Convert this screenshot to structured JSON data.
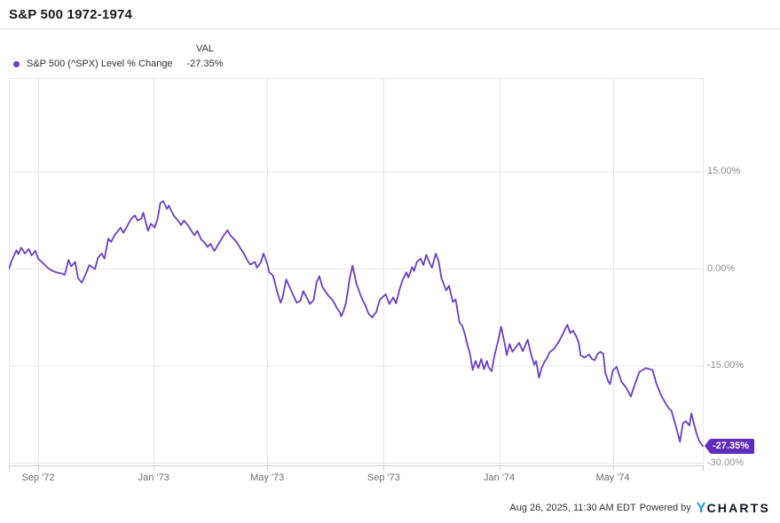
{
  "header": {
    "title": "S&P 500 1972-1974"
  },
  "legend": {
    "val_header": "VAL",
    "series_label": "S&P 500 (^SPX) Level % Change",
    "series_value": "-27.35%",
    "dot_color": "#6a3ec8"
  },
  "footer": {
    "timestamp": "Aug 26, 2025, 11:30 AM EDT",
    "powered_by": "Powered by",
    "logo_y": "Y",
    "logo_charts": "CHARTS",
    "logo_y_color": "#1b9cf0"
  },
  "chart_data": {
    "type": "line",
    "title": "S&P 500 1972-1974",
    "series_name": "S&P 500 (^SPX) Level % Change",
    "unit": "percent change",
    "line_color": "#6a3ec8",
    "badge_color": "#5e2dbe",
    "grid_color": "#e7e7e7",
    "axis_line_color": "#cfcfcf",
    "legend_position": "top-left",
    "grid": true,
    "ylim": [
      -30,
      30
    ],
    "x_range": [
      "1972-08-01",
      "1974-08-05"
    ],
    "last_value": -27.35,
    "last_value_label": "-27.35%",
    "y_ticks": [
      {
        "value": 15,
        "label": "15.00%"
      },
      {
        "value": 0,
        "label": "0.00%"
      },
      {
        "value": -15,
        "label": "-15.00%"
      },
      {
        "value": -30,
        "label": "-30.00%"
      }
    ],
    "x_ticks": [
      {
        "date": "1972-09-01",
        "label": "Sep '72"
      },
      {
        "date": "1973-01-01",
        "label": "Jan '73"
      },
      {
        "date": "1973-05-01",
        "label": "May '73"
      },
      {
        "date": "1973-09-01",
        "label": "Sep '73"
      },
      {
        "date": "1974-01-01",
        "label": "Jan '74"
      },
      {
        "date": "1974-05-01",
        "label": "May '74"
      }
    ],
    "points": [
      [
        "1972-08-01",
        0
      ],
      [
        "1972-08-04",
        1.3
      ],
      [
        "1972-08-09",
        2.9
      ],
      [
        "1972-08-11",
        2.3
      ],
      [
        "1972-08-14",
        3.3
      ],
      [
        "1972-08-18",
        2.4
      ],
      [
        "1972-08-22",
        3.1
      ],
      [
        "1972-08-25",
        2.1
      ],
      [
        "1972-08-29",
        2.8
      ],
      [
        "1972-09-01",
        1.6
      ],
      [
        "1972-09-06",
        0.9
      ],
      [
        "1972-09-11",
        0.2
      ],
      [
        "1972-09-15",
        -0.2
      ],
      [
        "1972-09-20",
        -0.5
      ],
      [
        "1972-09-26",
        -0.7
      ],
      [
        "1972-09-29",
        -0.9
      ],
      [
        "1972-10-03",
        1.4
      ],
      [
        "1972-10-06",
        0.4
      ],
      [
        "1972-10-10",
        1.1
      ],
      [
        "1972-10-13",
        -1.4
      ],
      [
        "1972-10-17",
        -2.1
      ],
      [
        "1972-10-20",
        -1.2
      ],
      [
        "1972-10-25",
        0.6
      ],
      [
        "1972-10-31",
        0
      ],
      [
        "1972-11-03",
        1.7
      ],
      [
        "1972-11-07",
        2.4
      ],
      [
        "1972-11-10",
        1.6
      ],
      [
        "1972-11-14",
        4.7
      ],
      [
        "1972-11-17",
        4.2
      ],
      [
        "1972-11-21",
        5.3
      ],
      [
        "1972-11-27",
        6.4
      ],
      [
        "1972-11-30",
        5.6
      ],
      [
        "1972-12-05",
        6.9
      ],
      [
        "1972-12-08",
        7.7
      ],
      [
        "1972-12-12",
        8.3
      ],
      [
        "1972-12-15",
        7.5
      ],
      [
        "1972-12-19",
        7.8
      ],
      [
        "1972-12-21",
        8.7
      ],
      [
        "1972-12-26",
        5.9
      ],
      [
        "1972-12-29",
        7.0
      ],
      [
        "1973-01-02",
        6.4
      ],
      [
        "1973-01-05",
        7.7
      ],
      [
        "1973-01-08",
        10.2
      ],
      [
        "1973-01-11",
        10.5
      ],
      [
        "1973-01-15",
        9.3
      ],
      [
        "1973-01-17",
        9.8
      ],
      [
        "1973-01-22",
        8.3
      ],
      [
        "1973-01-26",
        7.6
      ],
      [
        "1973-01-30",
        6.8
      ],
      [
        "1973-02-02",
        7.5
      ],
      [
        "1973-02-06",
        6.8
      ],
      [
        "1973-02-09",
        6.1
      ],
      [
        "1973-02-13",
        5.2
      ],
      [
        "1973-02-16",
        5.9
      ],
      [
        "1973-02-20",
        4.6
      ],
      [
        "1973-02-23",
        4.2
      ],
      [
        "1973-02-27",
        3.4
      ],
      [
        "1973-03-02",
        3.9
      ],
      [
        "1973-03-06",
        2.8
      ],
      [
        "1973-03-09",
        3.5
      ],
      [
        "1973-03-13",
        4.5
      ],
      [
        "1973-03-16",
        5.2
      ],
      [
        "1973-03-20",
        6.0
      ],
      [
        "1973-03-23",
        5.2
      ],
      [
        "1973-03-27",
        4.6
      ],
      [
        "1973-03-30",
        4.1
      ],
      [
        "1973-04-03",
        3.1
      ],
      [
        "1973-04-06",
        2.5
      ],
      [
        "1973-04-10",
        1.3
      ],
      [
        "1973-04-13",
        0.7
      ],
      [
        "1973-04-18",
        1.1
      ],
      [
        "1973-04-20",
        0.2
      ],
      [
        "1973-04-24",
        1.0
      ],
      [
        "1973-04-27",
        2.4
      ],
      [
        "1973-05-01",
        0.8
      ],
      [
        "1973-05-03",
        -0.5
      ],
      [
        "1973-05-07",
        -1.0
      ],
      [
        "1973-05-09",
        -2.1
      ],
      [
        "1973-05-11",
        -3.3
      ],
      [
        "1973-05-15",
        -5.2
      ],
      [
        "1973-05-17",
        -4.5
      ],
      [
        "1973-05-21",
        -1.6
      ],
      [
        "1973-05-24",
        -2.6
      ],
      [
        "1973-05-29",
        -4.2
      ],
      [
        "1973-06-01",
        -5.2
      ],
      [
        "1973-06-05",
        -4.9
      ],
      [
        "1973-06-08",
        -3.4
      ],
      [
        "1973-06-12",
        -4.5
      ],
      [
        "1973-06-15",
        -5.4
      ],
      [
        "1973-06-19",
        -4.8
      ],
      [
        "1973-06-22",
        -2.1
      ],
      [
        "1973-06-25",
        -1.1
      ],
      [
        "1973-06-28",
        -2.7
      ],
      [
        "1973-07-02",
        -3.6
      ],
      [
        "1973-07-05",
        -4.2
      ],
      [
        "1973-07-09",
        -4.8
      ],
      [
        "1973-07-11",
        -5.3
      ],
      [
        "1973-07-13",
        -5.9
      ],
      [
        "1973-07-17",
        -6.8
      ],
      [
        "1973-07-18",
        -7.3
      ],
      [
        "1973-07-20",
        -6.7
      ],
      [
        "1973-07-23",
        -5.3
      ],
      [
        "1973-07-25",
        -3.5
      ],
      [
        "1973-07-27",
        -1.5
      ],
      [
        "1973-07-30",
        0.5
      ],
      [
        "1973-08-01",
        -0.8
      ],
      [
        "1973-08-03",
        -2.2
      ],
      [
        "1973-08-08",
        -4.2
      ],
      [
        "1973-08-13",
        -5.8
      ],
      [
        "1973-08-16",
        -6.9
      ],
      [
        "1973-08-20",
        -7.5
      ],
      [
        "1973-08-22",
        -7.0
      ],
      [
        "1973-08-24",
        -6.7
      ],
      [
        "1973-08-28",
        -4.7
      ],
      [
        "1973-09-03",
        -3.9
      ],
      [
        "1973-09-07",
        -5.4
      ],
      [
        "1973-09-11",
        -4.4
      ],
      [
        "1973-09-14",
        -5.3
      ],
      [
        "1973-09-18",
        -3.0
      ],
      [
        "1973-09-21",
        -1.7
      ],
      [
        "1973-09-25",
        -0.5
      ],
      [
        "1973-09-27",
        -1.3
      ],
      [
        "1973-10-01",
        0.3
      ],
      [
        "1973-10-03",
        -0.3
      ],
      [
        "1973-10-06",
        1.1
      ],
      [
        "1973-10-10",
        1.6
      ],
      [
        "1973-10-13",
        0.6
      ],
      [
        "1973-10-16",
        2.2
      ],
      [
        "1973-10-19",
        1.1
      ],
      [
        "1973-10-22",
        0.2
      ],
      [
        "1973-10-26",
        2.4
      ],
      [
        "1973-10-29",
        1.2
      ],
      [
        "1973-11-01",
        -1.4
      ],
      [
        "1973-11-06",
        -3.3
      ],
      [
        "1973-11-09",
        -2.6
      ],
      [
        "1973-11-13",
        -5.1
      ],
      [
        "1973-11-16",
        -4.7
      ],
      [
        "1973-11-20",
        -8.2
      ],
      [
        "1973-11-23",
        -8.8
      ],
      [
        "1973-11-26",
        -10.2
      ],
      [
        "1973-11-28",
        -11.5
      ],
      [
        "1973-12-01",
        -13.0
      ],
      [
        "1973-12-04",
        -15.6
      ],
      [
        "1973-12-07",
        -14.2
      ],
      [
        "1973-12-10",
        -15.3
      ],
      [
        "1973-12-13",
        -13.9
      ],
      [
        "1973-12-16",
        -15.5
      ],
      [
        "1973-12-19",
        -14.2
      ],
      [
        "1973-12-21",
        -15.2
      ],
      [
        "1973-12-24",
        -15.8
      ],
      [
        "1973-12-27",
        -13.4
      ],
      [
        "1973-12-31",
        -11.0
      ],
      [
        "1974-01-03",
        -8.9
      ],
      [
        "1974-01-07",
        -11.7
      ],
      [
        "1974-01-09",
        -13.3
      ],
      [
        "1974-01-12",
        -11.6
      ],
      [
        "1974-01-15",
        -12.8
      ],
      [
        "1974-01-19",
        -12.0
      ],
      [
        "1974-01-22",
        -11.4
      ],
      [
        "1974-01-26",
        -12.7
      ],
      [
        "1974-01-31",
        -10.9
      ],
      [
        "1974-02-04",
        -13.4
      ],
      [
        "1974-02-07",
        -14.8
      ],
      [
        "1974-02-09",
        -14.2
      ],
      [
        "1974-02-12",
        -16.8
      ],
      [
        "1974-02-15",
        -15.2
      ],
      [
        "1974-02-18",
        -14.3
      ],
      [
        "1974-02-21",
        -13.6
      ],
      [
        "1974-02-23",
        -12.9
      ],
      [
        "1974-02-28",
        -12.3
      ],
      [
        "1974-03-05",
        -11.2
      ],
      [
        "1974-03-09",
        -10.1
      ],
      [
        "1974-03-14",
        -8.6
      ],
      [
        "1974-03-17",
        -9.9
      ],
      [
        "1974-03-20",
        -9.5
      ],
      [
        "1974-03-23",
        -10.3
      ],
      [
        "1974-03-26",
        -11.4
      ],
      [
        "1974-03-28",
        -13.3
      ],
      [
        "1974-04-01",
        -13.7
      ],
      [
        "1974-04-04",
        -13.4
      ],
      [
        "1974-04-06",
        -13.2
      ],
      [
        "1974-04-09",
        -13.9
      ],
      [
        "1974-04-12",
        -14.1
      ],
      [
        "1974-04-15",
        -13.1
      ],
      [
        "1974-04-18",
        -12.8
      ],
      [
        "1974-04-21",
        -13.1
      ],
      [
        "1974-04-23",
        -16.0
      ],
      [
        "1974-04-26",
        -17.3
      ],
      [
        "1974-04-28",
        -17.8
      ],
      [
        "1974-05-01",
        -15.7
      ],
      [
        "1974-05-05",
        -15.1
      ],
      [
        "1974-05-10",
        -17.4
      ],
      [
        "1974-05-15",
        -18.3
      ],
      [
        "1974-05-20",
        -19.7
      ],
      [
        "1974-05-22",
        -18.8
      ],
      [
        "1974-05-29",
        -15.9
      ],
      [
        "1974-06-05",
        -15.3
      ],
      [
        "1974-06-12",
        -15.6
      ],
      [
        "1974-06-16",
        -17.7
      ],
      [
        "1974-06-21",
        -19.5
      ],
      [
        "1974-06-26",
        -20.8
      ],
      [
        "1974-06-29",
        -21.5
      ],
      [
        "1974-07-02",
        -21.9
      ],
      [
        "1974-07-07",
        -24.5
      ],
      [
        "1974-07-11",
        -26.7
      ],
      [
        "1974-07-14",
        -23.9
      ],
      [
        "1974-07-17",
        -23.5
      ],
      [
        "1974-07-21",
        -24.2
      ],
      [
        "1974-07-23",
        -22.3
      ],
      [
        "1974-07-28",
        -25.2
      ],
      [
        "1974-07-31",
        -26.5
      ],
      [
        "1974-08-04",
        -27.35
      ]
    ]
  }
}
